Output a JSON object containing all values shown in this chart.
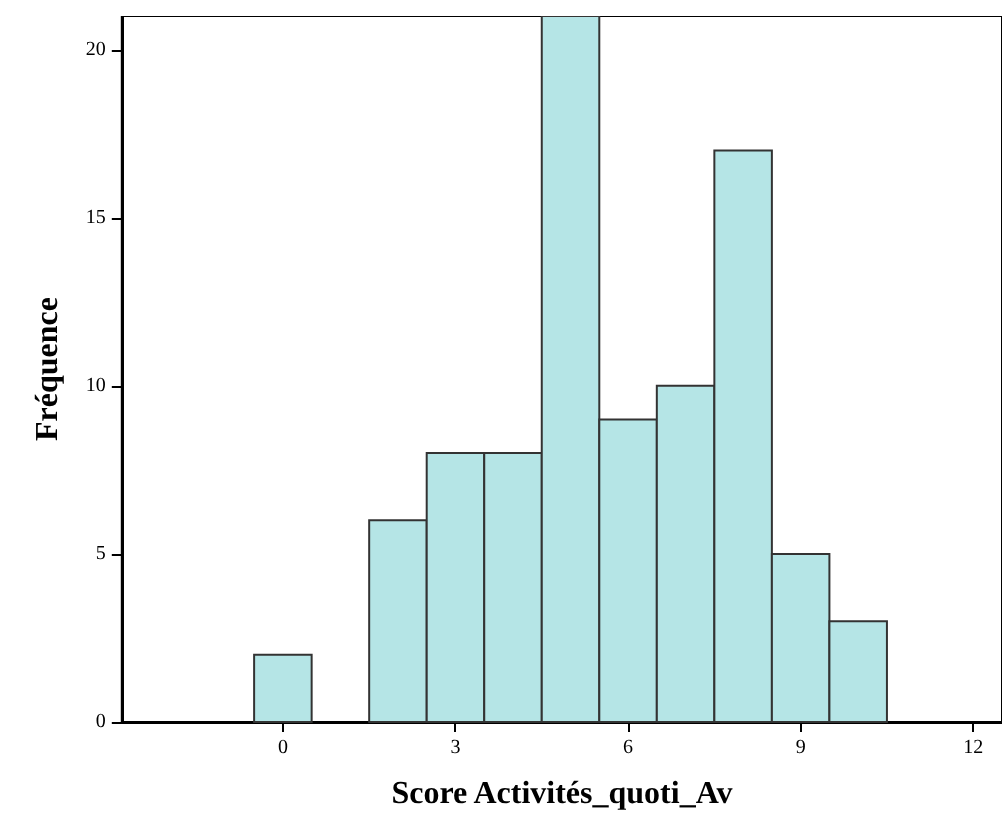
{
  "chart_data": {
    "type": "histogram",
    "xlabel": "Score Activités_quoti_Av",
    "ylabel": "Fréquence",
    "bins": [
      -0.5,
      0.5,
      1.5,
      2.5,
      3.5,
      4.5,
      5.5,
      6.5,
      7.5,
      8.5,
      9.5,
      10.5
    ],
    "values": [
      2,
      0,
      6,
      8,
      8,
      21,
      9,
      10,
      17,
      5,
      3
    ],
    "color": "#b5e5e6",
    "xlim": [
      -2.8,
      12.5
    ],
    "xticks": [
      0,
      3,
      6,
      9,
      12
    ],
    "ylim": [
      0,
      21
    ],
    "yticks": [
      0,
      5,
      10,
      15,
      20
    ],
    "grid": false
  }
}
